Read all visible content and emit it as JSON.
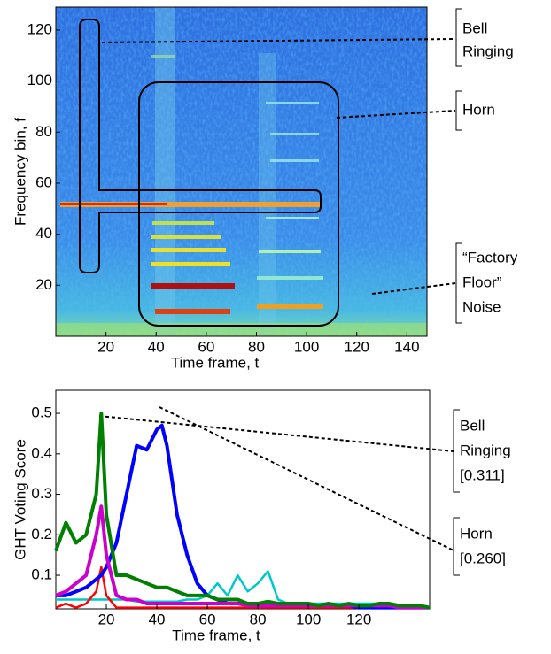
{
  "chart_data": [
    {
      "type": "spectrogram",
      "xlabel": "Time frame, t",
      "ylabel": "Frequency bin, f",
      "xlim": [
        0,
        148
      ],
      "xticks": [
        20,
        40,
        60,
        80,
        100,
        120,
        140
      ],
      "ylim": [
        0,
        129
      ],
      "yticks": [
        20,
        40,
        60,
        80,
        100,
        120
      ],
      "annotations": [
        [
          "Bell",
          "Ringing"
        ],
        [
          "Horn"
        ],
        [
          "“Factory",
          "Floor”",
          "Noise"
        ]
      ]
    },
    {
      "type": "line",
      "xlabel": "Time frame, t",
      "ylabel": "GHT Voting Score",
      "xlim": [
        0,
        148
      ],
      "xticks": [
        20,
        40,
        60,
        80,
        100,
        120
      ],
      "ylim": [
        0.017,
        0.557
      ],
      "yticks": [
        0.1,
        0.2,
        0.3,
        0.4,
        0.5
      ],
      "annotations": [
        [
          "Bell",
          "Ringing",
          "[0.311]"
        ],
        [
          "Horn",
          "[0.260]"
        ]
      ],
      "x": [
        0,
        4,
        8,
        12,
        16,
        18,
        20,
        24,
        28,
        32,
        36,
        40,
        42,
        44,
        48,
        52,
        56,
        60,
        64,
        68,
        72,
        76,
        80,
        84,
        88,
        92,
        96,
        100,
        104,
        108,
        112,
        116,
        120,
        124,
        128,
        132,
        136,
        140,
        144,
        148
      ],
      "series": [
        {
          "color": "#00c8c8",
          "values": [
            0.04,
            0.04,
            0.04,
            0.04,
            0.04,
            0.04,
            0.04,
            0.04,
            0.04,
            0.035,
            0.035,
            0.035,
            0.035,
            0.035,
            0.035,
            0.04,
            0.04,
            0.05,
            0.08,
            0.05,
            0.1,
            0.06,
            0.08,
            0.11,
            0.04,
            0.03,
            0.03,
            0.03,
            0.03,
            0.03,
            0.03,
            0.03,
            0.03,
            0.03,
            0.03,
            0.025,
            0.025,
            0.025,
            0.02,
            0.02
          ]
        },
        {
          "color": "#ff0000",
          "values": [
            0.02,
            0.03,
            0.02,
            0.03,
            0.06,
            0.12,
            0.05,
            0.02,
            0.02,
            0.02,
            0.02,
            0.02,
            0.02,
            0.02,
            0.02,
            0.02,
            0.02,
            0.02,
            0.02,
            0.02,
            0.02,
            0.02,
            0.02,
            0.02,
            0.02,
            0.02,
            0.02,
            0.02,
            0.02,
            0.02,
            0.02,
            0.02,
            0.02,
            0.02,
            0.02,
            0.02,
            0.02,
            0.02,
            0.02,
            0.02
          ]
        },
        {
          "color": "#0000ff",
          "values": [
            0.05,
            0.05,
            0.06,
            0.07,
            0.09,
            0.1,
            0.12,
            0.18,
            0.3,
            0.42,
            0.41,
            0.46,
            0.47,
            0.42,
            0.25,
            0.15,
            0.08,
            0.05,
            0.04,
            0.03,
            0.03,
            0.03,
            0.03,
            0.03,
            0.03,
            0.03,
            0.03,
            0.03,
            0.025,
            0.03,
            0.025,
            0.025,
            0.02,
            0.02,
            0.02,
            0.02,
            0.02,
            0.02,
            0.02,
            0.02
          ]
        },
        {
          "color": "#cc00cc",
          "values": [
            0.05,
            0.06,
            0.08,
            0.1,
            0.2,
            0.27,
            0.15,
            0.05,
            0.04,
            0.04,
            0.03,
            0.03,
            0.03,
            0.03,
            0.03,
            0.03,
            0.03,
            0.03,
            0.03,
            0.03,
            0.03,
            0.025,
            0.025,
            0.025,
            0.025,
            0.025,
            0.025,
            0.025,
            0.025,
            0.025,
            0.025,
            0.025,
            0.025,
            0.025,
            0.025,
            0.025,
            0.02,
            0.02,
            0.02,
            0.02
          ]
        },
        {
          "color": "#008000",
          "values": [
            0.16,
            0.23,
            0.18,
            0.2,
            0.3,
            0.5,
            0.25,
            0.1,
            0.1,
            0.09,
            0.08,
            0.07,
            0.07,
            0.07,
            0.06,
            0.05,
            0.05,
            0.05,
            0.04,
            0.04,
            0.04,
            0.03,
            0.03,
            0.035,
            0.03,
            0.03,
            0.03,
            0.03,
            0.025,
            0.03,
            0.025,
            0.03,
            0.025,
            0.025,
            0.03,
            0.03,
            0.025,
            0.025,
            0.025,
            0.02
          ]
        }
      ]
    }
  ]
}
